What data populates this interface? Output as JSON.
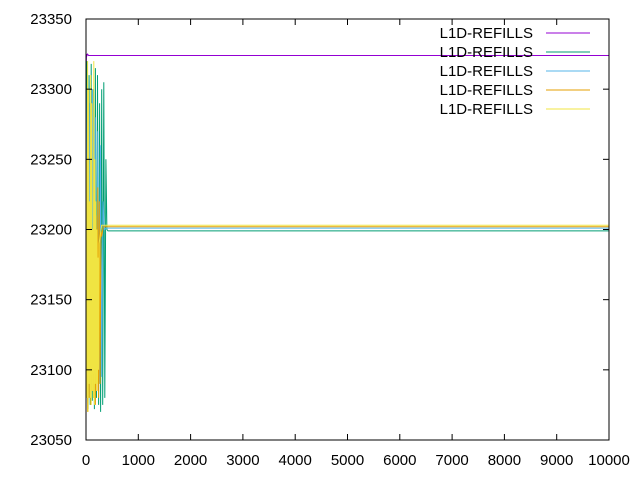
{
  "chart_data": {
    "type": "line",
    "title": "",
    "xlabel": "",
    "ylabel": "",
    "xlim": [
      0,
      10000
    ],
    "ylim": [
      23050,
      23350
    ],
    "xticks": [
      0,
      1000,
      2000,
      3000,
      4000,
      5000,
      6000,
      7000,
      8000,
      9000,
      10000
    ],
    "yticks": [
      23050,
      23100,
      23150,
      23200,
      23250,
      23300,
      23350
    ],
    "xtick_labels": [
      "0",
      "1000",
      "2000",
      "3000",
      "4000",
      "5000",
      "6000",
      "7000",
      "8000",
      "9000",
      "10000"
    ],
    "ytick_labels": [
      "23050",
      "23100",
      "23150",
      "23200",
      "23250",
      "23300",
      "23350"
    ],
    "grid": false,
    "legend_position": "top-right",
    "series": [
      {
        "name": "L1D-REFILLS",
        "color": "#9400d3",
        "x": [
          0,
          10,
          20,
          30,
          50,
          100,
          200,
          400,
          1000,
          5000,
          10000
        ],
        "y": [
          23310,
          23325,
          23324,
          23325,
          23324,
          23324,
          23324,
          23324,
          23324,
          23324,
          23324
        ]
      },
      {
        "name": "L1D-REFILLS",
        "color": "#009e73",
        "x": [
          0,
          20,
          40,
          60,
          80,
          100,
          120,
          140,
          160,
          180,
          200,
          220,
          240,
          260,
          280,
          300,
          320,
          340,
          360,
          380,
          400,
          420,
          1000,
          5000,
          10000
        ],
        "y": [
          23070,
          23320,
          23072,
          23310,
          23075,
          23318,
          23078,
          23300,
          23072,
          23315,
          23080,
          23310,
          23075,
          23290,
          23070,
          23300,
          23075,
          23305,
          23080,
          23250,
          23200,
          23199,
          23199,
          23199,
          23199
        ]
      },
      {
        "name": "L1D-REFILLS",
        "color": "#56b4e9",
        "x": [
          0,
          25,
          50,
          75,
          100,
          125,
          150,
          175,
          200,
          225,
          250,
          275,
          300,
          325,
          350,
          400,
          1000,
          5000,
          10000
        ],
        "y": [
          23100,
          23300,
          23090,
          23290,
          23085,
          23300,
          23090,
          23280,
          23085,
          23270,
          23090,
          23260,
          23095,
          23220,
          23200,
          23201,
          23201,
          23201,
          23201
        ]
      },
      {
        "name": "L1D-REFILLS",
        "color": "#e69f00",
        "x": [
          0,
          15,
          30,
          45,
          60,
          75,
          90,
          105,
          120,
          135,
          150,
          165,
          180,
          195,
          210,
          225,
          240,
          255,
          270,
          285,
          300,
          330,
          1000,
          5000,
          10000
        ],
        "y": [
          23090,
          23220,
          23070,
          23250,
          23080,
          23210,
          23075,
          23240,
          23085,
          23200,
          23080,
          23230,
          23075,
          23210,
          23085,
          23230,
          23080,
          23220,
          23090,
          23200,
          23195,
          23202,
          23202,
          23202,
          23202
        ]
      },
      {
        "name": "L1D-REFILLS",
        "color": "#f0e442",
        "x": [
          0,
          10,
          20,
          30,
          40,
          50,
          60,
          70,
          80,
          90,
          100,
          110,
          120,
          130,
          140,
          150,
          160,
          170,
          180,
          190,
          200,
          210,
          220,
          230,
          240,
          250,
          270,
          300,
          1000,
          5000,
          10000
        ],
        "y": [
          23100,
          23250,
          23080,
          23320,
          23070,
          23300,
          23090,
          23220,
          23080,
          23310,
          23075,
          23290,
          23085,
          23200,
          23080,
          23320,
          23075,
          23250,
          23090,
          23220,
          23085,
          23200,
          23090,
          23180,
          23100,
          23190,
          23195,
          23203,
          23203,
          23203,
          23203
        ]
      }
    ]
  }
}
